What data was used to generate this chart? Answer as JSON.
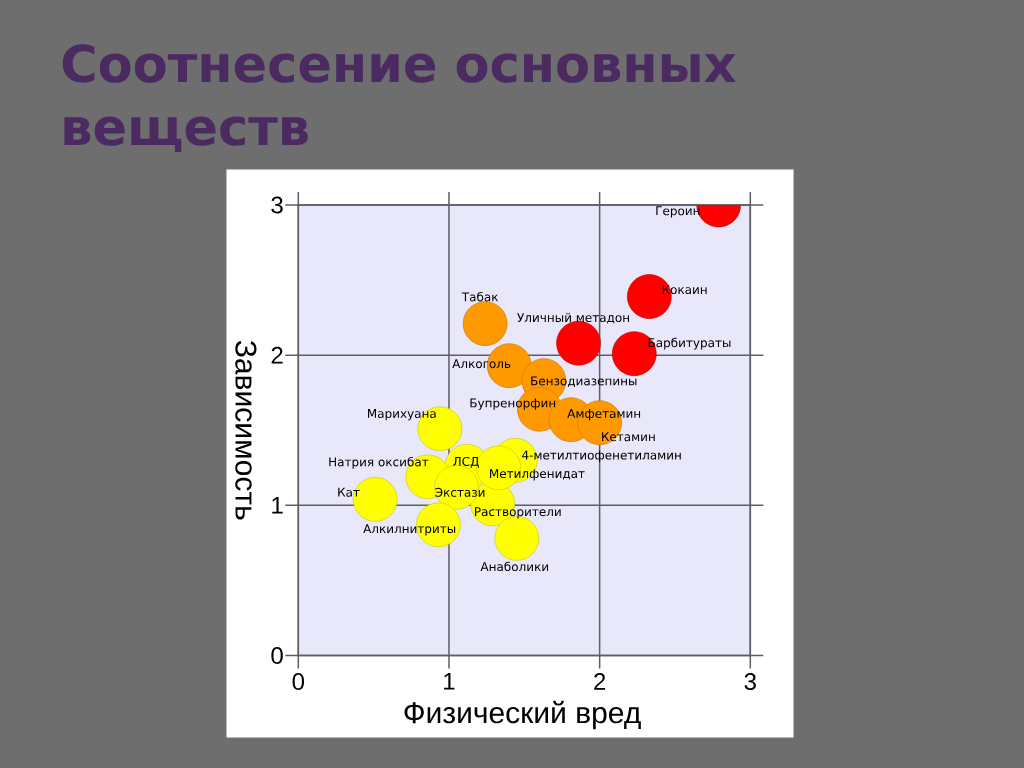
{
  "chart_data": {
    "type": "scatter",
    "title": "Соотнесение основных веществ",
    "xlabel": "Физический вред",
    "ylabel": "Зависимость",
    "x": [
      2.79,
      2.33,
      2.23,
      1.86,
      1.24,
      1.4,
      1.63,
      1.6,
      1.81,
      2.0,
      0.94,
      1.12,
      1.44,
      1.29,
      1.33,
      0.86,
      1.05,
      0.51,
      0.93,
      1.45
    ],
    "values": [
      3.0,
      2.39,
      2.01,
      2.08,
      2.21,
      1.93,
      1.83,
      1.64,
      1.57,
      1.55,
      1.51,
      1.26,
      1.3,
      1.01,
      1.25,
      1.19,
      1.12,
      1.04,
      0.87,
      0.78
    ],
    "colors": [
      "#ff0000",
      "#ff0000",
      "#ff0000",
      "#ff0000",
      "#ff9900",
      "#ff9900",
      "#ff9900",
      "#ff9900",
      "#ff9900",
      "#ff9900",
      "#ffff00",
      "#ffff00",
      "#ffff00",
      "#ffff00",
      "#ffff00",
      "#ffff00",
      "#ffff00",
      "#ffff00",
      "#ffff00",
      "#ffff00"
    ],
    "xlim": [
      0,
      3
    ],
    "ylim": [
      0,
      3
    ],
    "xticks": [
      0,
      1,
      2,
      3
    ],
    "yticks": [
      0,
      1,
      2,
      3
    ],
    "grid": true,
    "marker": "circle",
    "annotations": [
      {
        "text": "Героин",
        "x": 2.79,
        "y": 3.0
      },
      {
        "text": "Кокаин",
        "x": 2.33,
        "y": 2.39
      },
      {
        "text": "Барбитураты",
        "x": 2.23,
        "y": 2.01
      },
      {
        "text": "Уличный метадон",
        "x": 1.86,
        "y": 2.08
      },
      {
        "text": "Табак",
        "x": 1.24,
        "y": 2.21
      },
      {
        "text": "Алкоголь",
        "x": 1.4,
        "y": 1.93
      },
      {
        "text": "Бензодиазепины",
        "x": 1.63,
        "y": 1.83
      },
      {
        "text": "Бупренорфин",
        "x": 1.6,
        "y": 1.64
      },
      {
        "text": "Амфетамин",
        "x": 1.81,
        "y": 1.57
      },
      {
        "text": "Кетамин",
        "x": 2.0,
        "y": 1.55
      },
      {
        "text": "Марихуана",
        "x": 0.94,
        "y": 1.51
      },
      {
        "text": "ЛСД",
        "x": 1.12,
        "y": 1.26
      },
      {
        "text": "4-метилтиофенетиламин",
        "x": 1.44,
        "y": 1.3
      },
      {
        "text": "Растворители",
        "x": 1.29,
        "y": 1.01
      },
      {
        "text": "Метилфенидат",
        "x": 1.33,
        "y": 1.25
      },
      {
        "text": "Натрия оксибат",
        "x": 0.86,
        "y": 1.19
      },
      {
        "text": "Экстази",
        "x": 1.05,
        "y": 1.12
      },
      {
        "text": "Кат",
        "x": 0.51,
        "y": 1.04
      },
      {
        "text": "Алкилнитриты",
        "x": 0.93,
        "y": 0.87
      },
      {
        "text": "Анаболики",
        "x": 1.45,
        "y": 0.78
      }
    ]
  }
}
